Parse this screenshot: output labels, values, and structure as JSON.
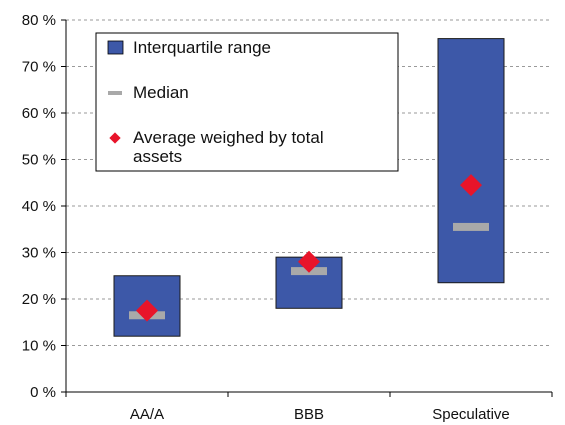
{
  "chart_data": {
    "type": "box",
    "title": "",
    "xlabel": "",
    "ylabel": "",
    "ylim": [
      0,
      80
    ],
    "y_ticks": [
      0,
      10,
      20,
      30,
      40,
      50,
      60,
      70,
      80
    ],
    "y_tick_labels": [
      "0 %",
      "10 %",
      "20 %",
      "30 %",
      "40 %",
      "50 %",
      "60 %",
      "70 %",
      "80 %"
    ],
    "grid": true,
    "legend_position": "top-left",
    "categories": [
      "AA/A",
      "BBB",
      "Speculative"
    ],
    "series": [
      {
        "name": "Interquartile range",
        "q1": [
          12,
          18,
          23.5
        ],
        "q3": [
          25,
          29,
          76
        ],
        "color": "#3D58A8"
      },
      {
        "name": "Median",
        "values": [
          16.5,
          26,
          35.5
        ],
        "color": "#A9A9A9"
      },
      {
        "name": "Average weighed by total assets",
        "values": [
          17.5,
          28,
          44.5
        ],
        "color": "#E8142A"
      }
    ],
    "legend": {
      "iqr_label": "Interquartile range",
      "median_label": "Median",
      "avg_label_line1": "Average weighed by total",
      "avg_label_line2": "assets"
    }
  }
}
